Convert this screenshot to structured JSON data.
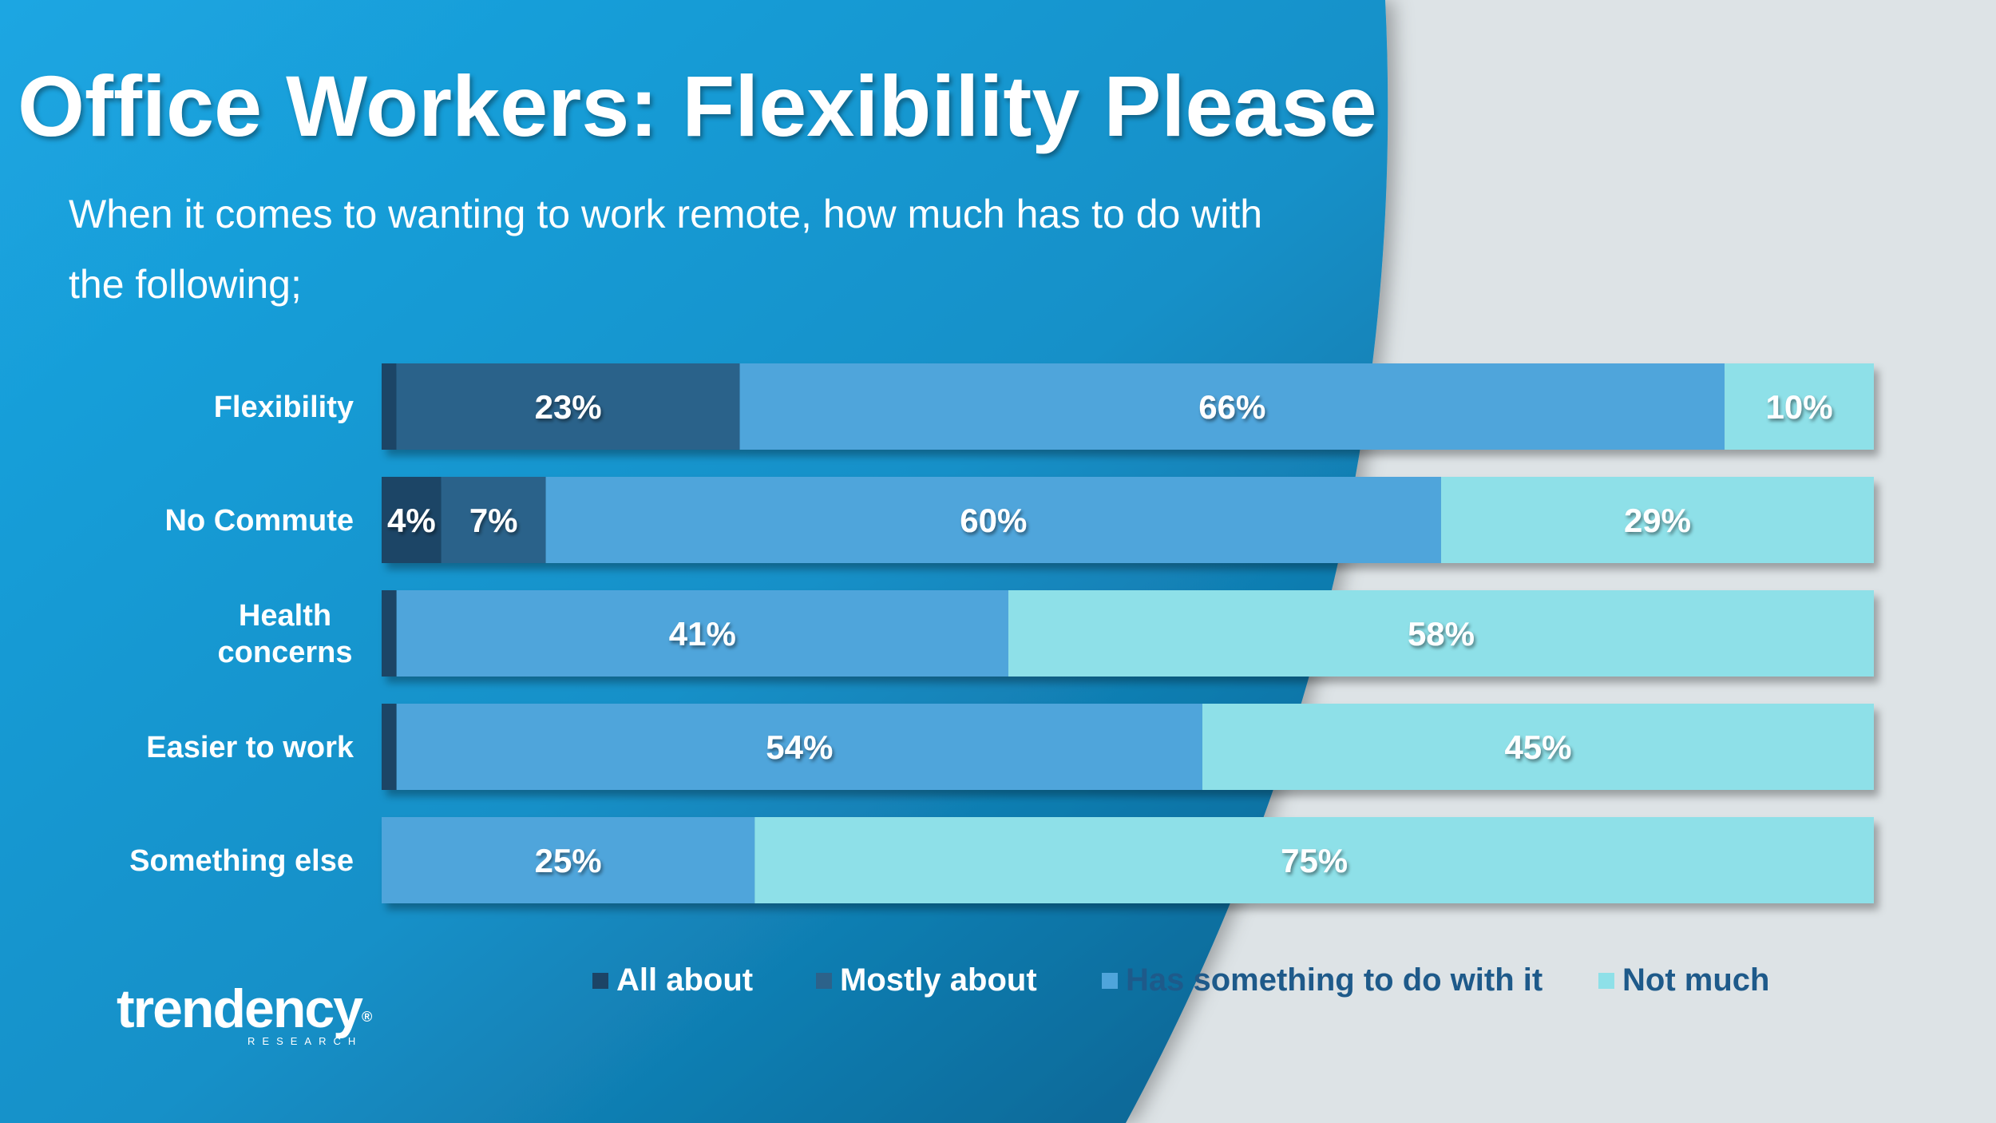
{
  "slide": {
    "title": "Office Workers: Flexibility Please",
    "subtitle": "When it comes to wanting to work remote, how much has to do with the following;",
    "logo_word": "trendency",
    "logo_sub": "RESEARCH"
  },
  "colors": {
    "bg_blue": "#1ba2de",
    "bg_blue_dark": "#0c6a98",
    "bg_gray": "#dde3e6"
  },
  "chart_data": {
    "type": "bar",
    "orientation": "horizontal",
    "stacked": true,
    "percent_stacked": true,
    "categories": [
      "Flexibility",
      "No Commute",
      "Health concerns",
      "Easier to work",
      "Something else"
    ],
    "series": [
      {
        "name": "All about",
        "color": "#1c4466",
        "values": [
          1,
          4,
          1,
          1,
          0
        ],
        "labels": [
          "",
          "4%",
          "",
          "",
          ""
        ]
      },
      {
        "name": "Mostly about",
        "color": "#2c628a",
        "values": [
          23,
          7,
          0,
          0,
          0
        ],
        "labels": [
          "23%",
          "7%",
          "",
          "",
          ""
        ]
      },
      {
        "name": "Has something to do with it",
        "color": "#4fa5db",
        "values": [
          66,
          60,
          41,
          54,
          25
        ],
        "labels": [
          "66%",
          "60%",
          "41%",
          "54%",
          "25%"
        ]
      },
      {
        "name": "Not much",
        "color": "#8ee0e8",
        "values": [
          10,
          29,
          58,
          45,
          75
        ],
        "labels": [
          "10%",
          "29%",
          "58%",
          "45%",
          "75%"
        ]
      }
    ],
    "xlim": [
      0,
      100
    ],
    "legend_position": "bottom",
    "grid": false
  }
}
